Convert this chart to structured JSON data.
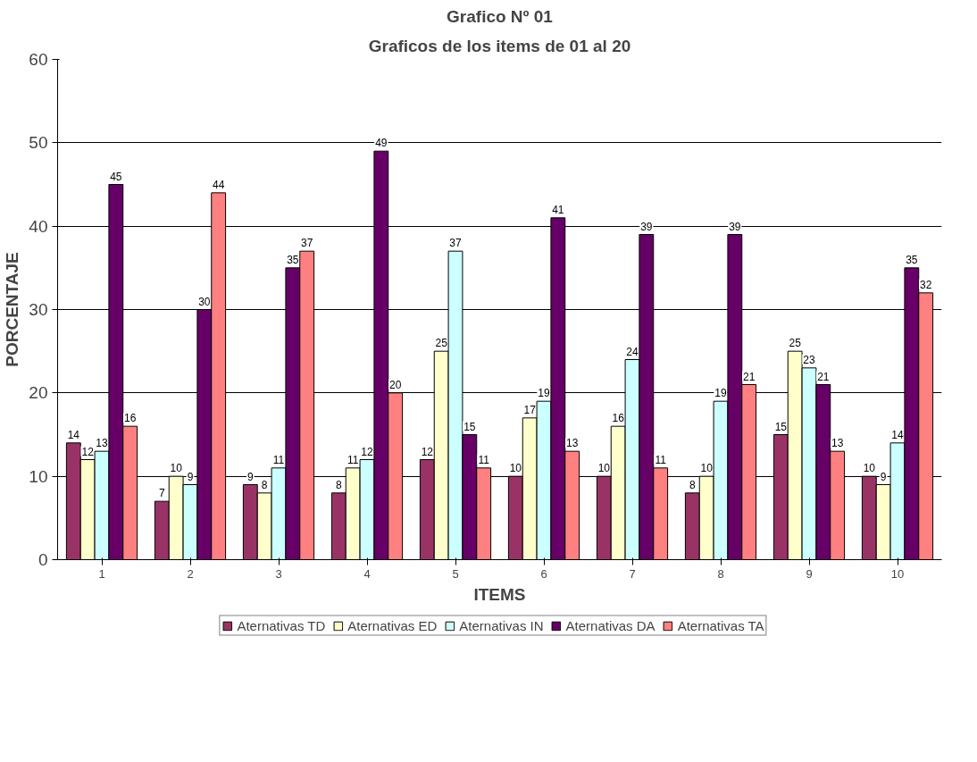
{
  "chart_data": {
    "type": "bar",
    "title": "Grafico Nº 01",
    "subtitle": "Graficos de los items de 01 al 20",
    "xlabel": "ITEMS",
    "ylabel": "PORCENTAJE",
    "categories": [
      "1",
      "2",
      "3",
      "4",
      "5",
      "6",
      "7",
      "8",
      "9",
      "10"
    ],
    "series": [
      {
        "name": "Aternativas TD",
        "color": "#993366",
        "values": [
          14,
          7,
          9,
          8,
          12,
          10,
          10,
          8,
          15,
          10
        ]
      },
      {
        "name": "Aternativas ED",
        "color": "#ffffcc",
        "values": [
          12,
          10,
          8,
          11,
          25,
          17,
          16,
          10,
          25,
          9
        ]
      },
      {
        "name": "Aternativas IN",
        "color": "#ccffff",
        "values": [
          13,
          9,
          11,
          12,
          37,
          19,
          24,
          19,
          23,
          14
        ]
      },
      {
        "name": "Aternativas DA",
        "color": "#660066",
        "values": [
          45,
          30,
          35,
          49,
          15,
          41,
          39,
          39,
          21,
          35
        ]
      },
      {
        "name": "Aternativas TA",
        "color": "#ff8080",
        "values": [
          16,
          44,
          37,
          20,
          11,
          13,
          11,
          21,
          13,
          32
        ]
      }
    ],
    "ylim": [
      0,
      60
    ],
    "yticks": [
      0,
      10,
      20,
      30,
      40,
      50,
      60
    ],
    "grid": "y",
    "legend": "bottom",
    "data_labels": true
  }
}
